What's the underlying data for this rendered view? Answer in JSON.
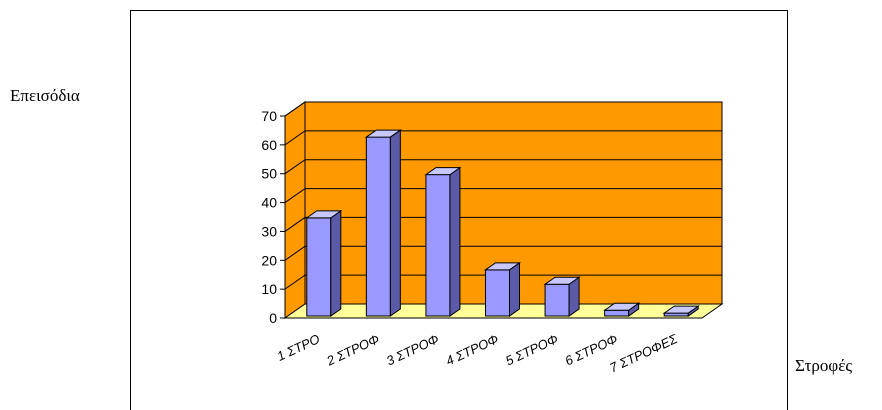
{
  "chart_data": {
    "type": "bar",
    "categories": [
      "1 ΣΤΡΟ",
      "2 ΣΤΡΟΦ",
      "3 ΣΤΡΟΦ",
      "4 ΣΤΡΟΦ",
      "5 ΣΤΡΟΦ",
      "6 ΣΤΡΟΦ",
      "7 ΣΤΡΟΦΕΣ"
    ],
    "category_display": [
      "1 ΣΤΡΟ",
      "2 ΣΤΡΟΦ",
      "3 ΣΤΡΟΦ",
      "4 ΣΤΡΟΦ",
      "5 ΣΤΡΟΦ",
      "6 ΣΤΡΟΦ",
      "7 ΣΤΡΟΦΕΣ"
    ],
    "values": [
      34,
      62,
      49,
      16,
      11,
      2,
      1
    ],
    "ylabel": "Επεισόδια",
    "xlabel": "Στροφές",
    "ylim": [
      0,
      70
    ],
    "yticks": [
      0,
      10,
      20,
      30,
      40,
      50,
      60,
      70
    ],
    "grid": true,
    "style": "3d-column",
    "colors": {
      "wall": "#ff9900",
      "floor": "#ffff99",
      "bar_front": "#9999ff",
      "bar_side": "#5a5aa8",
      "bar_top": "#c8c8ff"
    }
  }
}
